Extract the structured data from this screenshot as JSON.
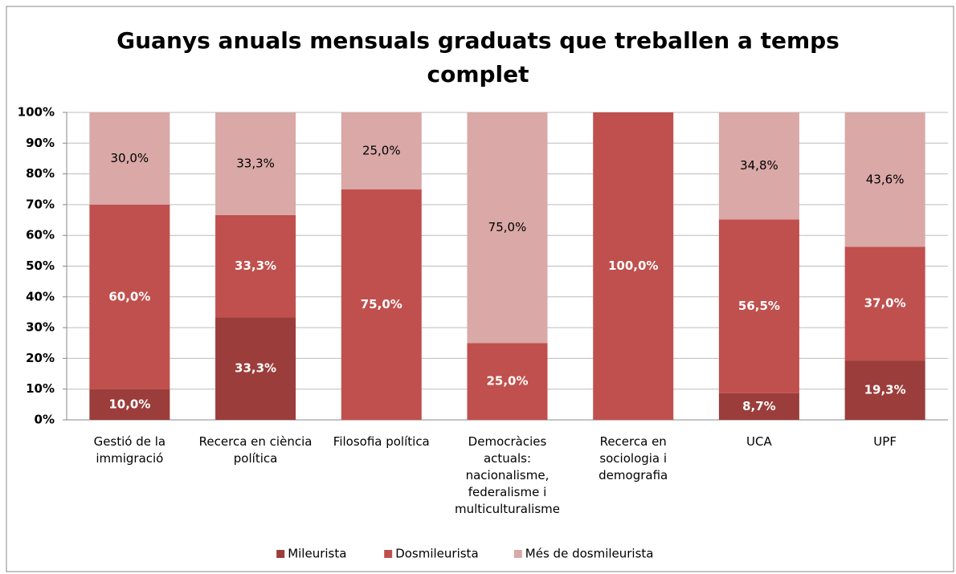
{
  "chart_data": {
    "type": "stacked_bar",
    "title": "Guanys anuals mensuals graduats que treballen a temps complet",
    "categories": [
      "Gestió de la immigració",
      "Recerca en ciència política",
      "Filosofia política",
      "Democràcies actuals: nacionalisme, federalisme i multiculturalisme",
      "Recerca en sociologia i demografia",
      "UCA",
      "UPF"
    ],
    "series": [
      {
        "name": "Mileurista",
        "color": "#9b3d3b",
        "values": [
          10,
          33.3,
          null,
          null,
          null,
          8.7,
          19.3
        ],
        "value_labels": [
          "10,0%",
          "33,3%",
          null,
          null,
          null,
          "8,7%",
          "19,3%"
        ]
      },
      {
        "name": "Dosmileurista",
        "color": "#c0504d",
        "values": [
          60,
          33.3,
          75,
          25,
          100,
          56.5,
          37
        ],
        "value_labels": [
          "60,0%",
          "33,3%",
          "75,0%",
          "25,0%",
          "100,0%",
          "56,5%",
          "37,0%"
        ]
      },
      {
        "name": "Més de dosmileurista",
        "color": "#d9a8a7",
        "values": [
          30,
          33.3,
          25,
          75,
          null,
          34.8,
          43.6
        ],
        "value_labels": [
          "30,0%",
          "33,3%",
          "25,0%",
          "75,0%",
          null,
          "34,8%",
          "43,6%"
        ]
      }
    ],
    "ylim": [
      0,
      100
    ],
    "yticks": [
      {
        "value": 0,
        "label": "0%"
      },
      {
        "value": 10,
        "label": "10%"
      },
      {
        "value": 20,
        "label": "20%"
      },
      {
        "value": 30,
        "label": "30%"
      },
      {
        "value": 40,
        "label": "40%"
      },
      {
        "value": 50,
        "label": "50%"
      },
      {
        "value": 60,
        "label": "60%"
      },
      {
        "value": 70,
        "label": "70%"
      },
      {
        "value": 80,
        "label": "80%"
      },
      {
        "value": 90,
        "label": "90%"
      },
      {
        "value": 100,
        "label": "100%"
      }
    ],
    "grid": true,
    "legend": "bottom"
  }
}
